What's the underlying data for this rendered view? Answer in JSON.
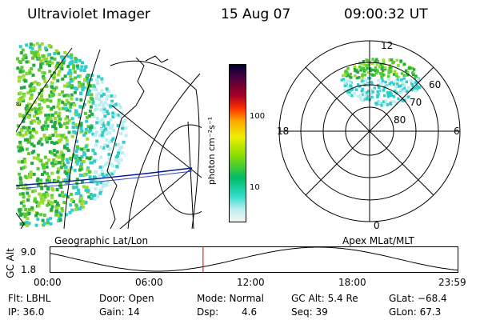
{
  "header": {
    "instrument": "Ultraviolet Imager",
    "date": "15 Aug 07",
    "time": "09:00:32 UT"
  },
  "colorbar": {
    "unit_label": "photon cm⁻²s⁻¹",
    "ticks": [
      "100",
      "10"
    ],
    "scale": "log",
    "colors": [
      "#000033",
      "#7a0040",
      "#cc0000",
      "#ff5500",
      "#ffaa00",
      "#e6e600",
      "#66dd00",
      "#00bb55",
      "#33ddcc",
      "#bbeeee",
      "#f2f2f2"
    ]
  },
  "geographic_panel": {
    "label": "Geographic Lat/Lon",
    "aurora_colors": [
      "#22aa44",
      "#55cc33",
      "#99dd33",
      "#33cccc",
      "#bbeeee"
    ]
  },
  "polar_panel": {
    "label": "Apex MLat/MLT",
    "mlt_labels": [
      "12",
      "18",
      "6",
      "0"
    ],
    "mlat_labels": [
      "60",
      "70",
      "80"
    ]
  },
  "altitude_plot": {
    "ylabel": "GC Alt",
    "yticks": [
      "9.0",
      "1.8"
    ],
    "xticks": [
      "00:00",
      "06:00",
      "12:00",
      "18:00",
      "23:59"
    ],
    "current_time_marker_hours": 9.0,
    "xlim_hours": [
      0,
      24
    ],
    "ylim_re": [
      1.8,
      9.0
    ]
  },
  "info": {
    "filter": "Flt: LBHL",
    "ip": "IP: 36.0",
    "door": "Door: Open",
    "gain": "Gain: 14",
    "mode": "Mode: Normal",
    "dsp": "Dsp:",
    "dsp_value": "4.6",
    "gc_alt": "GC Alt: 5.4 Re",
    "seq": "Seq: 39",
    "glat": "GLat: −68.4",
    "glon": "GLon:  67.3"
  }
}
